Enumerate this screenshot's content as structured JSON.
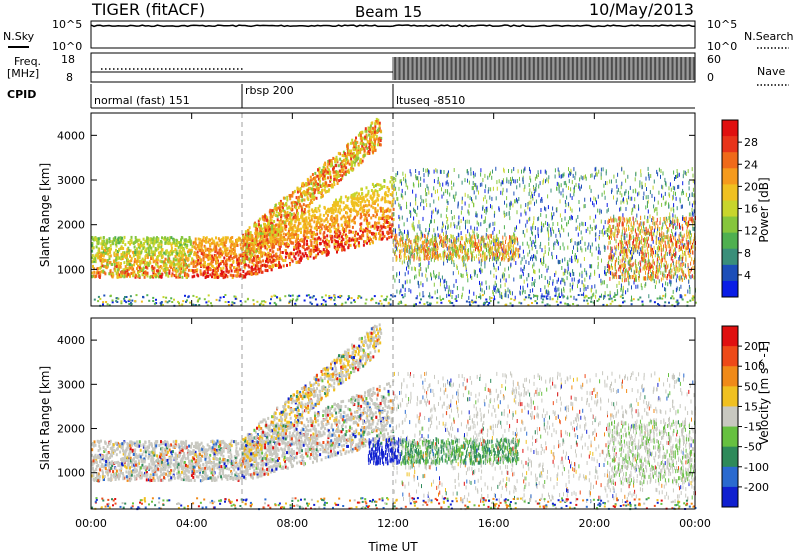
{
  "header": {
    "title": "TIGER (fitACF)",
    "beam": "Beam 15",
    "date": "10/May/2013"
  },
  "top_panels": {
    "nsky_label": "N.Sky",
    "nsky_ticks": [
      "10^5",
      "10^0"
    ],
    "nsearch_label": "N.Search",
    "nsearch_ticks": [
      "10^5",
      "10^0"
    ],
    "freq_label_1": "Freq.",
    "freq_label_2": "[MHz]",
    "freq_ticks": [
      "18",
      "8"
    ],
    "nave_label": "Nave",
    "nave_ticks": [
      "60",
      "0"
    ],
    "cpid_label": "CPID"
  },
  "cpid_segments": [
    {
      "start_h": 0,
      "end_h": 6,
      "label": "normal (fast) 151"
    },
    {
      "start_h": 6,
      "end_h": 12,
      "label": "rbsp 200"
    },
    {
      "start_h": 12,
      "end_h": 24,
      "label": "ltuseq -8510"
    }
  ],
  "chart_data": [
    {
      "type": "heatmap",
      "quantity": "power",
      "xlabel": "",
      "ylabel": "Slant Range [km]",
      "xlim": [
        0,
        24
      ],
      "ylim": [
        180,
        4500
      ],
      "yticks": [
        1000,
        2000,
        3000,
        4000
      ],
      "colorbar": {
        "label": "Power [dB]",
        "ticks": [
          "28",
          "24",
          "20",
          "16",
          "12",
          "8",
          "4"
        ],
        "colors": [
          "#0a1de6",
          "#1d4fb8",
          "#3a8f7a",
          "#4fb050",
          "#86c63c",
          "#c8d52c",
          "#f0c020",
          "#f59a1c",
          "#f06a1a",
          "#e8341a",
          "#e01010"
        ]
      }
    },
    {
      "type": "heatmap",
      "quantity": "velocity",
      "xlabel": "Time UT",
      "ylabel": "Slant Range [km]",
      "xlim": [
        0,
        24
      ],
      "ylim": [
        180,
        4500
      ],
      "xticks": [
        "00:00",
        "04:00",
        "08:00",
        "12:00",
        "16:00",
        "20:00",
        "00:00"
      ],
      "yticks": [
        1000,
        2000,
        3000,
        4000
      ],
      "colorbar": {
        "label": "Velocity [m s^-1]",
        "ticks": [
          "200",
          "100",
          "50",
          "15",
          "-15",
          "-50",
          "-100",
          "-200"
        ],
        "colors": [
          "#1020d0",
          "#2a6ad0",
          "#2e8a5a",
          "#66c040",
          "#c8c8c0",
          "#f0c020",
          "#f08a18",
          "#ee4a18",
          "#e01010"
        ]
      }
    }
  ]
}
